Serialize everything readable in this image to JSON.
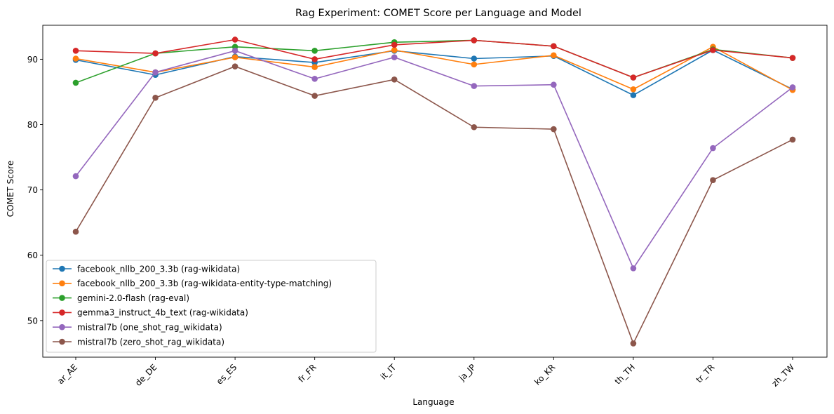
{
  "chart_data": {
    "type": "line",
    "title": "Rag Experiment: COMET Score per Language and Model",
    "xlabel": "Language",
    "ylabel": "COMET Score",
    "categories": [
      "ar_AE",
      "de_DE",
      "es_ES",
      "fr_FR",
      "it_IT",
      "ja_JP",
      "ko_KR",
      "th_TH",
      "tr_TR",
      "zh_TW"
    ],
    "ylim": [
      44.4,
      95.2
    ],
    "yticks": [
      50,
      60,
      70,
      80,
      90
    ],
    "grid": false,
    "legend_position": "lower-left",
    "series": [
      {
        "name": "facebook_nllb_200_3.3b (rag-wikidata)",
        "color": "#1f77b4",
        "values": [
          89.9,
          87.6,
          90.4,
          89.5,
          91.3,
          90.1,
          90.5,
          84.5,
          91.4,
          85.4
        ]
      },
      {
        "name": "facebook_nllb_200_3.3b (rag-wikidata-entity-type-matching)",
        "color": "#ff7f0e",
        "values": [
          90.1,
          88.0,
          90.3,
          88.8,
          91.4,
          89.2,
          90.6,
          85.4,
          91.9,
          85.3
        ]
      },
      {
        "name": "gemini-2.0-flash (rag-eval)",
        "color": "#2ca02c",
        "values": [
          86.4,
          90.9,
          91.9,
          91.3,
          92.6,
          92.9,
          92.0,
          87.2,
          91.5,
          90.2
        ]
      },
      {
        "name": "gemma3_instruct_4b_text (rag-wikidata)",
        "color": "#d62728",
        "values": [
          91.3,
          90.9,
          93.0,
          90.0,
          92.2,
          92.9,
          92.0,
          87.2,
          91.4,
          90.2
        ]
      },
      {
        "name": "mistral7b (one_shot_rag_wikidata)",
        "color": "#9467bd",
        "values": [
          72.1,
          88.0,
          91.3,
          87.0,
          90.3,
          85.9,
          86.1,
          58.0,
          76.4,
          85.7
        ]
      },
      {
        "name": "mistral7b (zero_shot_rag_wikidata)",
        "color": "#8c564b",
        "values": [
          63.6,
          84.1,
          88.9,
          84.4,
          86.9,
          79.6,
          79.3,
          46.5,
          71.5,
          77.7
        ]
      }
    ]
  }
}
